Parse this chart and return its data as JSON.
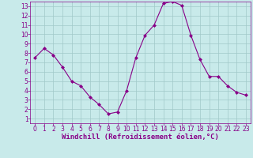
{
  "x": [
    0,
    1,
    2,
    3,
    4,
    5,
    6,
    7,
    8,
    9,
    10,
    11,
    12,
    13,
    14,
    15,
    16,
    17,
    18,
    19,
    20,
    21,
    22,
    23
  ],
  "y": [
    7.5,
    8.5,
    7.8,
    6.5,
    5.0,
    4.5,
    3.3,
    2.5,
    1.5,
    1.7,
    4.0,
    7.5,
    9.9,
    11.0,
    13.3,
    13.5,
    13.1,
    9.9,
    7.3,
    5.5,
    5.5,
    4.5,
    3.8,
    3.5
  ],
  "line_color": "#880088",
  "marker": "D",
  "marker_size": 2,
  "bg_color": "#c8eaea",
  "grid_color": "#a0c8c8",
  "xlabel": "Windchill (Refroidissement éolien,°C)",
  "xlim_min": -0.5,
  "xlim_max": 23.5,
  "ylim_min": 0.5,
  "ylim_max": 13.5,
  "xticks": [
    0,
    1,
    2,
    3,
    4,
    5,
    6,
    7,
    8,
    9,
    10,
    11,
    12,
    13,
    14,
    15,
    16,
    17,
    18,
    19,
    20,
    21,
    22,
    23
  ],
  "yticks": [
    1,
    2,
    3,
    4,
    5,
    6,
    7,
    8,
    9,
    10,
    11,
    12,
    13
  ],
  "tick_color": "#880088",
  "label_color": "#880088",
  "tick_fontsize": 5.5,
  "xlabel_fontsize": 6.5
}
